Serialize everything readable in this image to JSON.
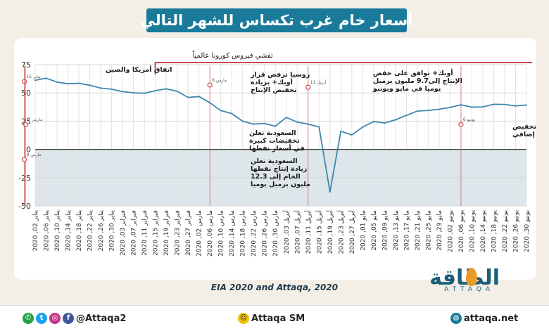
{
  "title": "أسعار خام غرب تكساس للشهر التالي",
  "source": "EIA 2020 and Attaqa, 2020",
  "logo": {
    "ar": "الطاقة",
    "en": "ATTAQA"
  },
  "footer": {
    "handle": "@Attaqa2",
    "sm": "Attaqa SM",
    "site": "attaqa.net"
  },
  "colors": {
    "line": "#3f86ad",
    "negative_fill": "#dde6ea",
    "marker": "#c94a4a",
    "title_bg": "#1a7a9a"
  },
  "chart_data": {
    "type": "line",
    "ylim": [
      -50,
      75
    ],
    "yticks": [
      -50,
      -25,
      0,
      25,
      50,
      75
    ],
    "grid": true,
    "x": [
      "2020 ,02 يناير",
      "2020 ,06 يناير",
      "2020 ,10 يناير",
      "2020 ,14 يناير",
      "2020 ,18 يناير",
      "2020 ,22 يناير",
      "2020 ,26 يناير",
      "2020 ,30 يناير",
      "2020 ,03 فبراير",
      "2020 ,07 فبراير",
      "2020 ,11 فبراير",
      "2020 ,15 فبراير",
      "2020 ,19 فبراير",
      "2020 ,23 فبراير",
      "2020 ,27 فبراير",
      "2020 ,02 مارس",
      "2020 ,06 مارس",
      "2020 ,10 مارس",
      "2020 ,14 مارس",
      "2020 ,18 مارس",
      "2020 ,22 مارس",
      "2020 ,26 مارس",
      "2020 ,30 مارس",
      "2020 ,03 أبريل",
      "2020 ,07 أبريل",
      "2020 ,11 أبريل",
      "2020 ,15 أبريل",
      "2020 ,19 أبريل",
      "2020 ,23 أبريل",
      "2020 ,27 أبريل",
      "2020 ,01 مايو",
      "2020 ,05 مايو",
      "2020 ,09 مايو",
      "2020 ,13 مايو",
      "2020 ,17 مايو",
      "2020 ,21 مايو",
      "2020 ,25 مايو",
      "2020 ,29 مايو",
      "2020 ,02 يونيو",
      "2020 ,06 يونيو",
      "2020 ,10 يونيو",
      "2020 ,14 يونيو",
      "2020 ,18 يونيو",
      "2020 ,22 يونيو",
      "2020 ,26 يونيو",
      "2020 ,30 يونيو"
    ],
    "series": [
      {
        "values": [
          61.2,
          63.0,
          59.6,
          58.1,
          58.5,
          56.7,
          54.2,
          53.3,
          51.1,
          50.1,
          49.6,
          52.0,
          53.6,
          51.4,
          46.0,
          46.8,
          41.3,
          34.4,
          31.7,
          25.0,
          22.4,
          23.0,
          20.5,
          28.3,
          24.1,
          22.4,
          19.9,
          -37.6,
          16.1,
          12.8,
          19.8,
          24.6,
          23.4,
          26.2,
          30.1,
          33.9,
          34.5,
          35.5,
          37.1,
          39.5,
          37.4,
          37.6,
          39.9,
          39.8,
          38.5,
          39.3
        ]
      }
    ],
    "annotations": [
      {
        "x": "2020 ,15 يناير",
        "y": 60,
        "label_date": "15 يناير",
        "text": "اتفاق أمريكا والصين"
      },
      {
        "x": "2020 ,06 مارس",
        "y": 57,
        "label_date": "6 مارس",
        "text": "روسيا ترفض قرار أوبك+ بزيادة تخفيض الإنتاج"
      },
      {
        "x": "2020 ,07 مارس",
        "y": 22,
        "label_date": "7 مارس",
        "text": "السعودية تعلن تخفيضات كبيرة في أسعار نفطها"
      },
      {
        "x": "2020 ,09 مارس",
        "y": -9,
        "label_date": "9 مارس",
        "text": "السعودية تعلن زيادة إنتاج نفطها الخام إلى 12.3 مليون برميل يوميا"
      },
      {
        "x": "2020 ,11 أبريل",
        "y": 55,
        "label_date": "11 أبريل",
        "text": "أوبك+ توافق على خفض الإنتاج إلى 9.7 مليون برميل يوميا في مايو ويونيو"
      },
      {
        "x": "2020 ,06 يونيو",
        "y": 22,
        "label_date": "6 يونيو",
        "text": "أوبك+ تمدد تخفيض الإنتاج لشهر إضافي"
      }
    ],
    "region": {
      "start": "2020 ,15 فبراير",
      "text": "تفشي فيروس كورونا عالمياً"
    }
  }
}
